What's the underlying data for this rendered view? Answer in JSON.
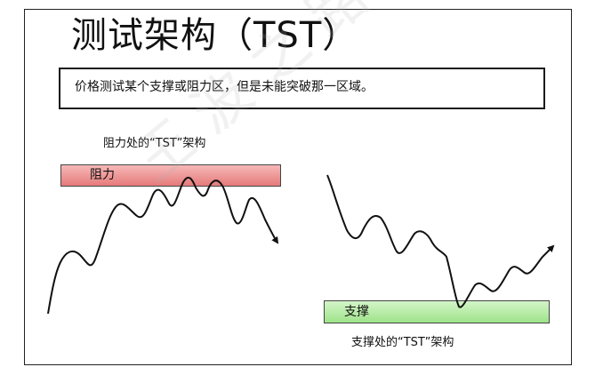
{
  "title": "测试架构（TST）",
  "definition": "价格测试某个支撑或阻力区，但是未能突破那一区域。",
  "resistance": {
    "caption": "阻力处的“TST”架构",
    "zone_label": "阻力",
    "zone_color": "#ee9a9a"
  },
  "support": {
    "caption": "支撑处的“TST”架构",
    "zone_label": "支撑",
    "zone_color": "#b6ecA6"
  }
}
